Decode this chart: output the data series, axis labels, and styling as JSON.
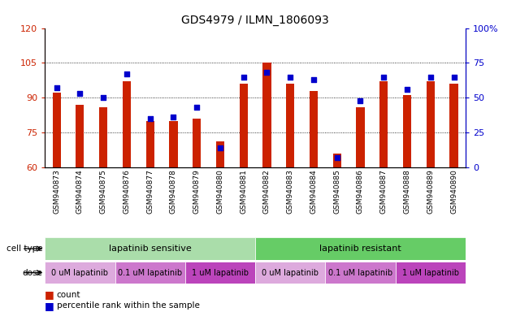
{
  "title": "GDS4979 / ILMN_1806093",
  "samples": [
    "GSM940873",
    "GSM940874",
    "GSM940875",
    "GSM940876",
    "GSM940877",
    "GSM940878",
    "GSM940879",
    "GSM940880",
    "GSM940881",
    "GSM940882",
    "GSM940883",
    "GSM940884",
    "GSM940885",
    "GSM940886",
    "GSM940887",
    "GSM940888",
    "GSM940889",
    "GSM940890"
  ],
  "counts": [
    92,
    87,
    86,
    97,
    80,
    80,
    81,
    71,
    96,
    105,
    96,
    93,
    66,
    86,
    97,
    91,
    97,
    96
  ],
  "percentiles": [
    57,
    53,
    50,
    67,
    35,
    36,
    43,
    14,
    65,
    68,
    65,
    63,
    7,
    48,
    65,
    56,
    65,
    65
  ],
  "ylim_left": [
    60,
    120
  ],
  "ylim_right": [
    0,
    100
  ],
  "yticks_left": [
    60,
    75,
    90,
    105,
    120
  ],
  "yticks_right": [
    0,
    25,
    50,
    75,
    100
  ],
  "bar_color": "#cc2200",
  "dot_color": "#0000cc",
  "cell_type_colors": [
    "#aaddaa",
    "#66cc66"
  ],
  "dose_colors": [
    "#ddaadd",
    "#cc77cc",
    "#bb44bb",
    "#ddaadd",
    "#cc77cc",
    "#bb44bb"
  ],
  "dose_labels": [
    "0 uM lapatinib",
    "0.1 uM lapatinib",
    "1 uM lapatinib",
    "0 uM lapatinib",
    "0.1 uM lapatinib",
    "1 uM lapatinib"
  ],
  "dose_ranges": [
    [
      0,
      3
    ],
    [
      3,
      6
    ],
    [
      6,
      9
    ],
    [
      9,
      12
    ],
    [
      12,
      15
    ],
    [
      15,
      18
    ]
  ],
  "legend_count_color": "#cc2200",
  "legend_pct_color": "#0000cc"
}
